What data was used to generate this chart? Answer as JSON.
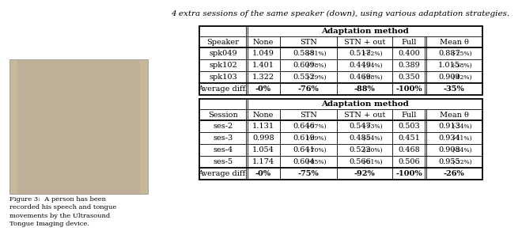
{
  "title_text": "4 extra sessions of the same speaker (down), using various adaptation strategies.",
  "table1_header_row2": [
    "Speaker",
    "None",
    "STN",
    "STN + out",
    "Full",
    "Mean θ"
  ],
  "table1_data": [
    [
      "spk049",
      "1.049",
      "0.588 ₋⁷ⁱ%",
      "0.517 ₋⁸⁲%",
      "0.400",
      "0.887 ₋⁲⁵%"
    ],
    [
      "spk102",
      "1.401",
      "0.609 ₋⁷⁸%",
      "0.449 ₋⁹⁴%",
      "0.389",
      "1.015 ₋⁳⁸%"
    ],
    [
      "spk103",
      "1.322",
      "0.552 ₋⁷⁹%",
      "0.469 ₋⁸⁸%",
      "0.350",
      "0.909 ₋⁴⁲%"
    ]
  ],
  "table1_data_main": [
    [
      "spk049",
      "1.049",
      "0.588",
      "0.517",
      "0.400",
      "0.887"
    ],
    [
      "spk102",
      "1.401",
      "0.609",
      "0.449",
      "0.389",
      "1.015"
    ],
    [
      "spk103",
      "1.322",
      "0.552",
      "0.469",
      "0.350",
      "0.909"
    ]
  ],
  "table1_data_pct": [
    [
      "",
      "",
      "(-71%)",
      "(-82%)",
      "",
      "(-25%)"
    ],
    [
      "",
      "",
      "(-78%)",
      "(-94%)",
      "",
      "(-38%)"
    ],
    [
      "",
      "",
      "(-79%)",
      "(-88%)",
      "",
      "(-42%)"
    ]
  ],
  "table1_avg": [
    "Average diff.",
    "-0%",
    "-76%",
    "-88%",
    "-100%",
    "-35%"
  ],
  "table2_header_row2": [
    "Session",
    "None",
    "STN",
    "STN + out",
    "Full",
    "Mean θ"
  ],
  "table2_data_main": [
    [
      "ses-2",
      "1.131",
      "0.646",
      "0.547",
      "0.503",
      "0.913"
    ],
    [
      "ses-3",
      "0.998",
      "0.619",
      "0.485",
      "0.451",
      "0.934"
    ],
    [
      "ses-4",
      "1.054",
      "0.641",
      "0.522",
      "0.468",
      "0.908"
    ],
    [
      "ses-5",
      "1.174",
      "0.604",
      "0.566",
      "0.506",
      "0.955"
    ]
  ],
  "table2_data_pct": [
    [
      "",
      "",
      "(-77%)",
      "(-93%)",
      "",
      "(-34%)"
    ],
    [
      "",
      "",
      "(-69%)",
      "(-94%)",
      "",
      "(-11%)"
    ],
    [
      "",
      "",
      "(-70%)",
      "(-90%)",
      "",
      "(-24%)"
    ],
    [
      "",
      "",
      "(-85%)",
      "(-91%)",
      "",
      "(-32%)"
    ]
  ],
  "table2_avg": [
    "Average diff.",
    "-0%",
    "-75%",
    "-92%",
    "-100%",
    "-26%"
  ],
  "fig3_caption": "Figure 3:  A person has been\nrecorded his speech and tongue\nmovements by the Ultrasound\nTongue Imaging device.",
  "bg_color": "#ffffff",
  "fontsize": 7.0,
  "pct_fontsize": 5.5,
  "title_fontsize": 7.5
}
